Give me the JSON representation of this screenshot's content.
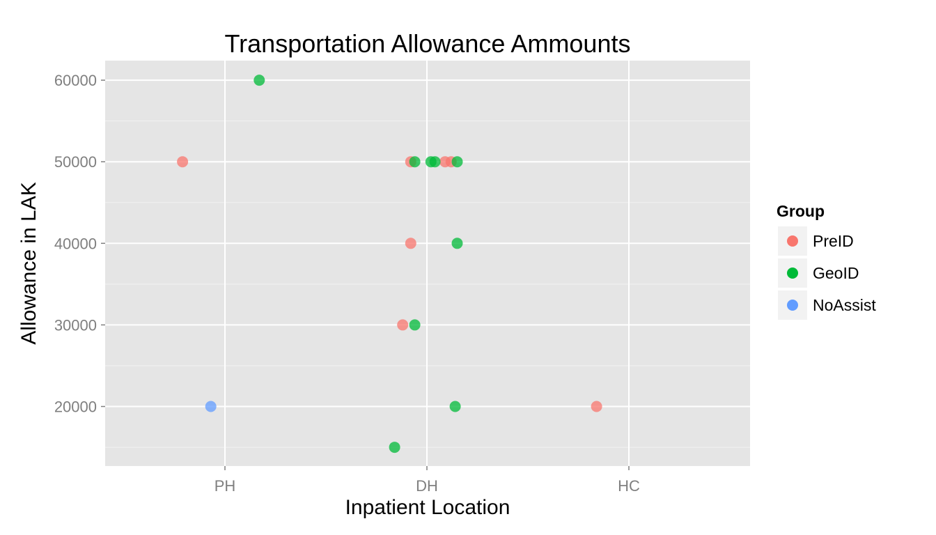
{
  "chart_data": {
    "type": "scatter",
    "title": "Transportation Allowance Ammounts",
    "xlabel": "Inpatient Location",
    "ylabel": "Allowance in LAK",
    "categories": [
      "PH",
      "DH",
      "HC"
    ],
    "yticks": [
      20000,
      30000,
      40000,
      50000,
      60000
    ],
    "ylim": [
      12700,
      62400
    ],
    "grid": true,
    "legend": {
      "title": "Group",
      "placement": "right",
      "entries": [
        "PreID",
        "GeoID",
        "NoAssist"
      ]
    },
    "colors": {
      "PreID": "#f8766d",
      "GeoID": "#00ba38",
      "NoAssist": "#619cff",
      "panel": "#e5e5e5",
      "grid": "#ffffff"
    },
    "series": [
      {
        "name": "PreID",
        "points": [
          {
            "x": 0.79,
            "y": 50000
          },
          {
            "x": 1.92,
            "y": 50000
          },
          {
            "x": 2.09,
            "y": 50000
          },
          {
            "x": 2.12,
            "y": 50000
          },
          {
            "x": 1.92,
            "y": 40000
          },
          {
            "x": 1.88,
            "y": 30000
          },
          {
            "x": 2.84,
            "y": 20000
          }
        ]
      },
      {
        "name": "GeoID",
        "points": [
          {
            "x": 1.17,
            "y": 60000
          },
          {
            "x": 1.94,
            "y": 50000
          },
          {
            "x": 2.02,
            "y": 50000
          },
          {
            "x": 2.04,
            "y": 50000
          },
          {
            "x": 2.15,
            "y": 50000
          },
          {
            "x": 2.15,
            "y": 40000
          },
          {
            "x": 1.94,
            "y": 30000
          },
          {
            "x": 2.14,
            "y": 20000
          },
          {
            "x": 1.84,
            "y": 15000
          }
        ]
      },
      {
        "name": "NoAssist",
        "points": [
          {
            "x": 0.93,
            "y": 20000
          }
        ]
      }
    ]
  }
}
